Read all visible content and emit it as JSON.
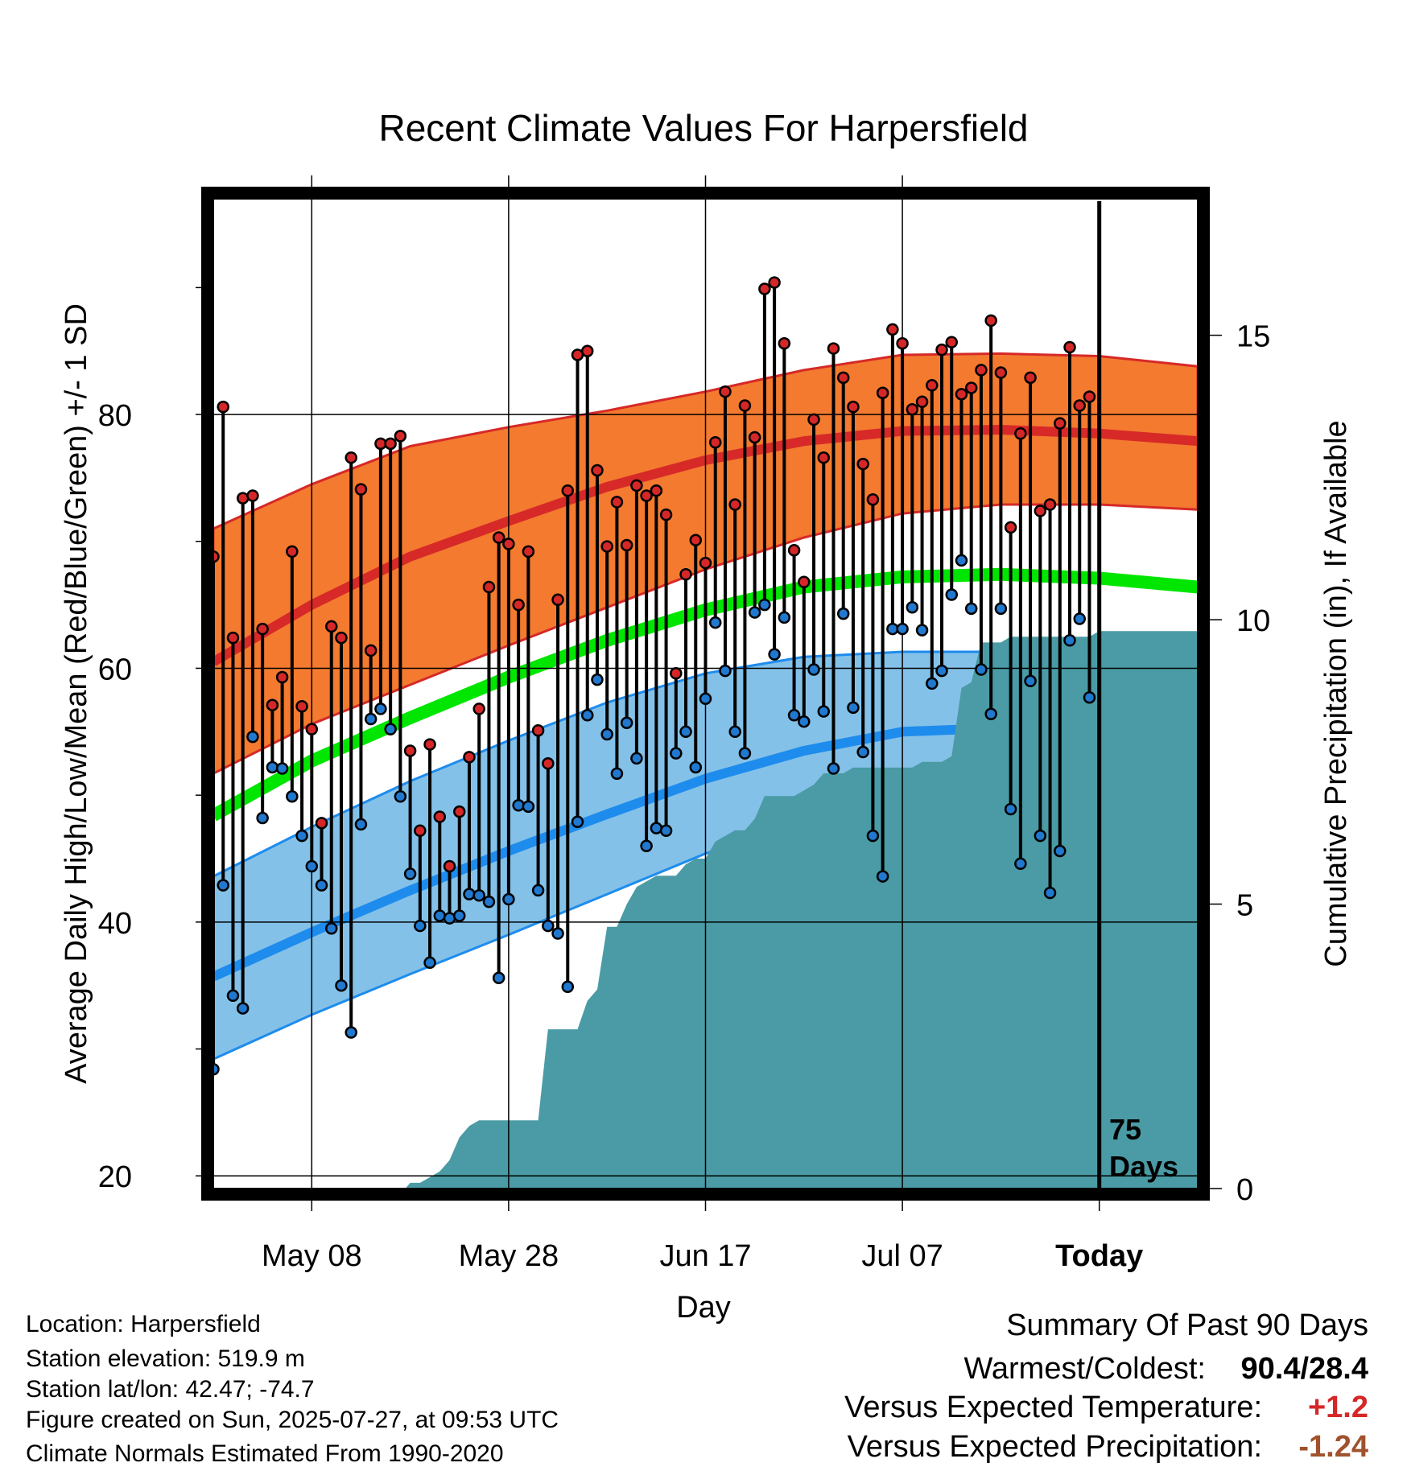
{
  "chart_data": {
    "type": "line",
    "title": "Recent Climate Values For Harpersfield",
    "xlabel": "Day",
    "ylabel": "Average Daily High/Low/Mean (Red/Blue/Green) +/- 1 SD",
    "y2label": "Cumulative Precipitation (in), If Available",
    "x_ticks": [
      {
        "day": 10,
        "label": "May 08"
      },
      {
        "day": 30,
        "label": "May 28"
      },
      {
        "day": 50,
        "label": "Jun 17"
      },
      {
        "day": 70,
        "label": "Jul 07"
      },
      {
        "day": 90,
        "label": "Today"
      }
    ],
    "xlim": [
      0,
      100
    ],
    "ylim": [
      19,
      97
    ],
    "y_ticks": [
      20,
      40,
      60,
      80
    ],
    "y2lim": [
      0,
      17.4
    ],
    "y2_ticks": [
      0,
      5,
      10,
      15
    ],
    "today_day": 90,
    "today_note": [
      "75",
      "Days"
    ],
    "colors": {
      "high_band": "#f37a2f",
      "high_line": "#d62928",
      "low_band": "#84c1e8",
      "low_line": "#1e8ced",
      "mean_line": "#00e600",
      "precip": "#4a9ba5",
      "high_dot": "#d62728",
      "low_dot": "#2178cf"
    },
    "normals": {
      "days": [
        0,
        10,
        20,
        30,
        40,
        50,
        60,
        70,
        80,
        90,
        100
      ],
      "high_mean": [
        60.5,
        65.0,
        68.8,
        71.6,
        74.3,
        76.4,
        77.9,
        78.7,
        78.8,
        78.5,
        77.9
      ],
      "high_upper": [
        71.0,
        74.5,
        77.5,
        79.0,
        80.3,
        81.8,
        83.5,
        84.7,
        84.8,
        84.6,
        83.8
      ],
      "high_lower": [
        51.7,
        55.6,
        58.7,
        61.8,
        64.8,
        67.8,
        70.3,
        72.2,
        72.9,
        72.9,
        72.5
      ],
      "mean": [
        48.4,
        52.7,
        56.1,
        59.3,
        62.2,
        64.6,
        66.4,
        67.2,
        67.4,
        67.1,
        66.4
      ],
      "low_mean": [
        35.7,
        39.2,
        42.5,
        45.6,
        48.5,
        51.3,
        53.5,
        55.0,
        55.3,
        55.1,
        54.8
      ],
      "low_upper": [
        43.6,
        47.5,
        51.1,
        54.3,
        57.3,
        59.6,
        60.9,
        61.3,
        61.3,
        61.1,
        60.7
      ],
      "low_lower": [
        29.2,
        32.7,
        35.9,
        39.0,
        42.2,
        45.4,
        47.9,
        49.4,
        49.9,
        49.8,
        49.5
      ]
    },
    "observations": {
      "high": [
        68.8,
        80.6,
        62.4,
        73.4,
        73.6,
        63.1,
        57.1,
        59.3,
        69.2,
        57.0,
        55.2,
        47.8,
        63.3,
        62.4,
        76.6,
        74.1,
        61.4,
        77.7,
        77.7,
        78.3,
        53.5,
        47.2,
        54.0,
        48.3,
        44.4,
        48.7,
        53.0,
        56.8,
        66.4,
        70.3,
        69.8,
        65.0,
        69.2,
        55.1,
        52.5,
        65.4,
        74.0,
        84.7,
        85.0,
        75.6,
        69.6,
        73.1,
        69.7,
        74.4,
        73.6,
        74.0,
        72.1,
        59.6,
        67.4,
        70.1,
        68.3,
        77.8,
        81.8,
        72.9,
        80.7,
        78.2,
        89.9,
        90.4,
        85.6,
        69.3,
        66.8,
        79.6,
        76.6,
        85.2,
        82.9,
        80.6,
        76.1,
        73.3,
        81.7,
        86.7,
        85.6,
        80.4,
        81.0,
        82.3,
        85.1,
        85.7,
        81.6,
        82.1,
        83.5,
        87.4,
        83.3,
        71.1,
        78.5,
        82.9,
        72.4,
        72.9,
        79.3,
        85.3,
        80.7,
        81.4
      ],
      "low": [
        28.4,
        42.9,
        34.2,
        33.2,
        54.6,
        48.2,
        52.2,
        52.1,
        49.9,
        46.8,
        44.4,
        42.9,
        39.5,
        35.0,
        31.3,
        47.7,
        56.0,
        56.8,
        55.2,
        49.9,
        43.8,
        39.7,
        36.8,
        40.5,
        40.3,
        40.5,
        42.2,
        42.1,
        41.6,
        35.6,
        41.8,
        49.2,
        49.1,
        42.5,
        39.7,
        39.1,
        34.9,
        47.9,
        56.3,
        59.1,
        54.8,
        51.7,
        55.7,
        52.9,
        46.0,
        47.4,
        47.2,
        53.3,
        55.0,
        52.2,
        57.6,
        63.6,
        59.8,
        55.0,
        53.3,
        64.4,
        65.0,
        61.1,
        64.0,
        56.3,
        55.8,
        59.9,
        56.6,
        52.1,
        64.3,
        56.9,
        53.4,
        46.8,
        43.6,
        63.1,
        63.1,
        64.8,
        63.0,
        58.8,
        59.8,
        65.8,
        68.5,
        64.7,
        59.9,
        56.4,
        64.7,
        48.9,
        44.6,
        59.0,
        46.8,
        42.3,
        45.6,
        62.2,
        63.9,
        57.7
      ]
    },
    "precip": {
      "days": [
        0,
        19.5,
        20,
        21,
        22,
        23,
        24,
        25,
        26,
        27,
        28,
        29,
        30,
        31,
        32,
        33,
        34,
        35,
        36,
        37,
        38,
        39,
        40,
        41,
        42,
        43,
        44,
        45,
        46,
        47,
        48,
        49,
        50,
        51,
        52,
        53,
        54,
        55,
        56,
        57,
        58,
        59,
        60,
        61,
        62,
        63,
        64,
        65,
        66,
        67,
        68,
        69,
        70,
        71,
        72,
        73,
        74,
        75,
        76,
        77,
        78,
        79,
        80,
        81,
        82,
        83,
        84,
        85,
        86,
        87,
        88,
        89,
        90,
        91,
        92,
        93,
        94,
        95,
        96,
        97,
        98,
        99,
        100
      ],
      "values": [
        0,
        0,
        0.1,
        0.1,
        0.2,
        0.3,
        0.5,
        0.9,
        1.1,
        1.2,
        1.2,
        1.2,
        1.2,
        1.2,
        1.2,
        1.2,
        2.8,
        2.8,
        2.8,
        2.8,
        3.3,
        3.5,
        4.6,
        4.6,
        5.0,
        5.3,
        5.4,
        5.5,
        5.5,
        5.5,
        5.7,
        5.8,
        5.8,
        6.1,
        6.2,
        6.3,
        6.3,
        6.5,
        6.9,
        6.9,
        6.9,
        6.9,
        7.0,
        7.1,
        7.3,
        7.3,
        7.3,
        7.4,
        7.4,
        7.4,
        7.4,
        7.4,
        7.4,
        7.4,
        7.5,
        7.5,
        7.5,
        7.6,
        8.8,
        8.9,
        9.6,
        9.6,
        9.6,
        9.7,
        9.7,
        9.7,
        9.7,
        9.7,
        9.7,
        9.7,
        9.7,
        9.7,
        9.8,
        9.8,
        9.8,
        9.8,
        9.8,
        9.8,
        9.8,
        9.8,
        9.8,
        9.8,
        9.8
      ]
    }
  },
  "info": {
    "location": "Location: Harpersfield",
    "elevation": "Station elevation: 519.9 m",
    "latlon": "Station lat/lon: 42.47; -74.7",
    "created": "Figure created on Sun, 2025-07-27, at 09:53 UTC",
    "normals": "Climate Normals Estimated From 1990-2020"
  },
  "summary": {
    "heading": "Summary Of Past 90 Days",
    "warm_cold_label": "Warmest/Coldest:",
    "warm_cold_value": "90.4/28.4",
    "temp_label": "Versus Expected Temperature:",
    "temp_value": "+1.2",
    "temp_color": "#d62728",
    "precip_label": "Versus Expected Precipitation:",
    "precip_value": "-1.24",
    "precip_color": "#a0522d"
  }
}
